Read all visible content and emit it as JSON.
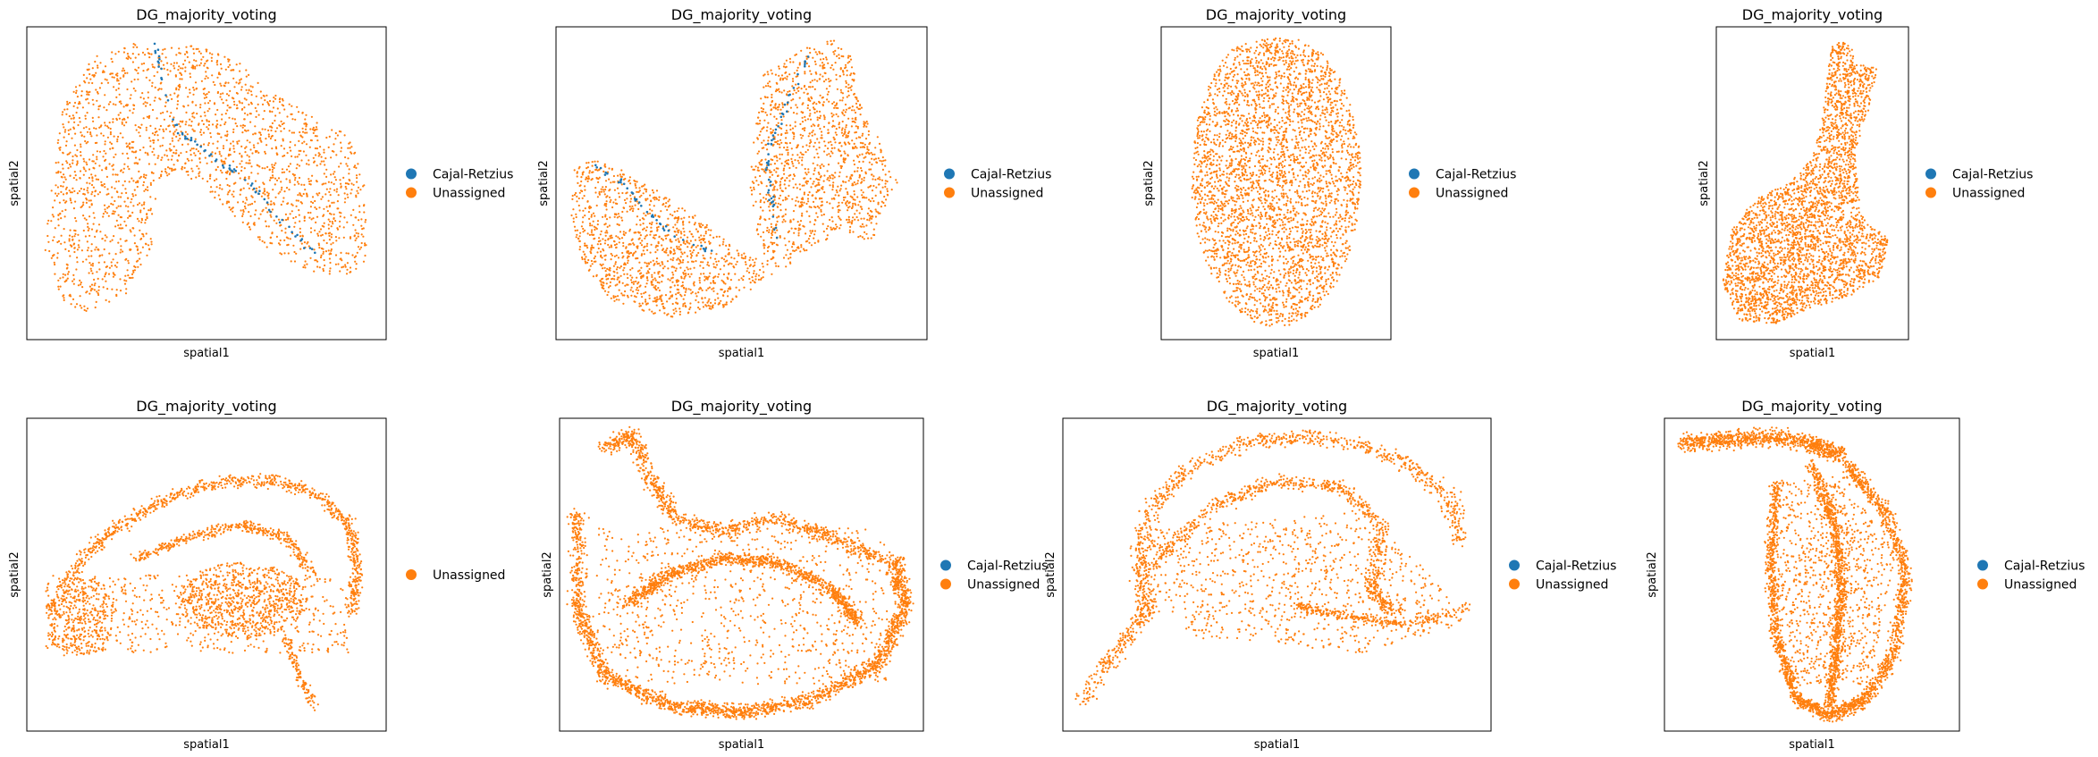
{
  "colors": {
    "Cajal-Retzius": "#1f77b4",
    "Unassigned": "#ff7f0e"
  },
  "chart_data": [
    {
      "type": "scatter",
      "title": "DG_majority_voting",
      "xlabel": "spatial1",
      "ylabel": "spatial2",
      "legend_placement": "right",
      "legend": [
        "Cajal-Retzius",
        "Unassigned"
      ],
      "grid": false,
      "description_of_shape": "two lobes joined at top, blue streak along inner edges"
    },
    {
      "type": "scatter",
      "title": "DG_majority_voting",
      "xlabel": "spatial1",
      "ylabel": "spatial2",
      "legend_placement": "right",
      "legend": [
        "Cajal-Retzius",
        "Unassigned"
      ],
      "grid": false
    },
    {
      "type": "scatter",
      "title": "DG_majority_voting",
      "xlabel": "spatial1",
      "ylabel": "spatial2",
      "legend_placement": "right",
      "legend": [
        "Cajal-Retzius",
        "Unassigned"
      ],
      "grid": false
    },
    {
      "type": "scatter",
      "title": "DG_majority_voting",
      "xlabel": "spatial1",
      "ylabel": "spatial2",
      "legend_placement": "right",
      "legend": [
        "Cajal-Retzius",
        "Unassigned"
      ],
      "grid": false
    },
    {
      "type": "scatter",
      "title": "DG_majority_voting",
      "xlabel": "spatial1",
      "ylabel": "spatial2",
      "legend_placement": "right",
      "legend": [
        "Unassigned"
      ],
      "grid": false
    },
    {
      "type": "scatter",
      "title": "DG_majority_voting",
      "xlabel": "spatial1",
      "ylabel": "spatial2",
      "legend_placement": "right",
      "legend": [
        "Cajal-Retzius",
        "Unassigned"
      ],
      "grid": false
    },
    {
      "type": "scatter",
      "title": "DG_majority_voting",
      "xlabel": "spatial1",
      "ylabel": "spatial2",
      "legend_placement": "right",
      "legend": [
        "Cajal-Retzius",
        "Unassigned"
      ],
      "grid": false
    },
    {
      "type": "scatter",
      "title": "DG_majority_voting",
      "xlabel": "spatial1",
      "ylabel": "spatial2",
      "legend_placement": "right",
      "legend": [
        "Cajal-Retzius",
        "Unassigned"
      ],
      "grid": false
    }
  ]
}
